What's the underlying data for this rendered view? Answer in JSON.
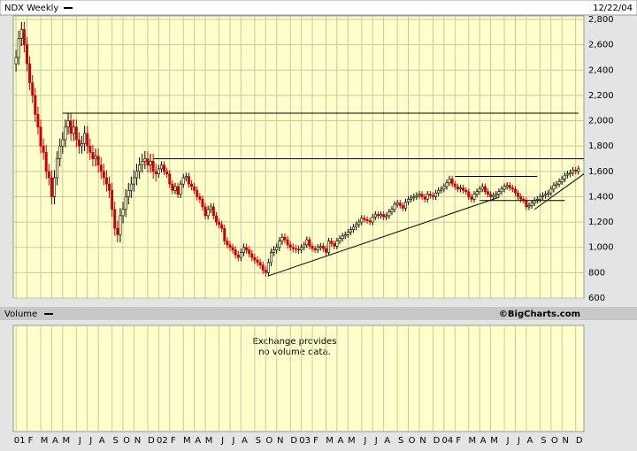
{
  "chart_data": {
    "type": "candlestick",
    "title": "NDX Weekly",
    "date": "12/22/04",
    "volume_label": "Volume",
    "credit": "©BigCharts.com",
    "volume_note": [
      "Exchange provides",
      "no volume data."
    ],
    "up_color": "#000000",
    "down_color": "#cc0000",
    "grid": true,
    "ylim": [
      600,
      2800
    ],
    "yticks": [
      600,
      800,
      {
        "value": 1000,
        "label": "1,000"
      },
      {
        "value": 1200,
        "label": "1,200"
      },
      {
        "value": 1400,
        "label": "1,400"
      },
      {
        "value": 1600,
        "label": "1,600"
      },
      {
        "value": 1800,
        "label": "1,800"
      },
      {
        "value": 2000,
        "label": "2,000"
      },
      {
        "value": 2200,
        "label": "2,200"
      },
      {
        "value": 2400,
        "label": "2,400"
      },
      {
        "value": 2600,
        "label": "2,600"
      },
      {
        "value": 2800,
        "label": "2,800"
      }
    ],
    "xlim": [
      -1,
      207
    ],
    "xticks": [
      {
        "value": 0,
        "label": "01"
      },
      {
        "value": 4,
        "label": "F"
      },
      {
        "value": 9,
        "label": "M"
      },
      {
        "value": 13,
        "label": "A"
      },
      {
        "value": 17,
        "label": "M"
      },
      {
        "value": 22,
        "label": "J"
      },
      {
        "value": 26,
        "label": "J"
      },
      {
        "value": 30,
        "label": "A"
      },
      {
        "value": 35,
        "label": "S"
      },
      {
        "value": 39,
        "label": "O"
      },
      {
        "value": 43,
        "label": "N"
      },
      {
        "value": 48,
        "label": "D"
      },
      {
        "value": 52,
        "label": "02"
      },
      {
        "value": 56,
        "label": "F"
      },
      {
        "value": 61,
        "label": "M"
      },
      {
        "value": 65,
        "label": "A"
      },
      {
        "value": 69,
        "label": "M"
      },
      {
        "value": 74,
        "label": "J"
      },
      {
        "value": 78,
        "label": "J"
      },
      {
        "value": 82,
        "label": "A"
      },
      {
        "value": 87,
        "label": "S"
      },
      {
        "value": 91,
        "label": "O"
      },
      {
        "value": 95,
        "label": "N"
      },
      {
        "value": 100,
        "label": "D"
      },
      {
        "value": 104,
        "label": "03"
      },
      {
        "value": 108,
        "label": "F"
      },
      {
        "value": 113,
        "label": "M"
      },
      {
        "value": 117,
        "label": "A"
      },
      {
        "value": 121,
        "label": "M"
      },
      {
        "value": 126,
        "label": "J"
      },
      {
        "value": 130,
        "label": "J"
      },
      {
        "value": 134,
        "label": "A"
      },
      {
        "value": 139,
        "label": "S"
      },
      {
        "value": 143,
        "label": "O"
      },
      {
        "value": 147,
        "label": "N"
      },
      {
        "value": 152,
        "label": "D"
      },
      {
        "value": 156,
        "label": "04"
      },
      {
        "value": 160,
        "label": "F"
      },
      {
        "value": 165,
        "label": "M"
      },
      {
        "value": 169,
        "label": "A"
      },
      {
        "value": 173,
        "label": "M"
      },
      {
        "value": 178,
        "label": "J"
      },
      {
        "value": 182,
        "label": "J"
      },
      {
        "value": 186,
        "label": "A"
      },
      {
        "value": 191,
        "label": "S"
      },
      {
        "value": 195,
        "label": "O"
      },
      {
        "value": 199,
        "label": "N"
      },
      {
        "value": 204,
        "label": "D"
      }
    ],
    "reference_lines": [
      {
        "y": 2060,
        "x": [
          17,
          205
        ]
      },
      {
        "y": 1700,
        "x": [
          50,
          207
        ]
      },
      {
        "y": 1560,
        "x": [
          160,
          190
        ]
      },
      {
        "y": 1370,
        "x": [
          169,
          200
        ]
      }
    ],
    "trend_lines": [
      {
        "x": [
          92,
          176
        ],
        "y": [
          775,
          1395
        ]
      },
      {
        "x": [
          189,
          207
        ],
        "y": [
          1300,
          1580
        ]
      }
    ],
    "ohlc": [
      [
        2450,
        2560,
        2390,
        2500
      ],
      [
        2500,
        2710,
        2440,
        2650
      ],
      [
        2650,
        2780,
        2590,
        2720
      ],
      [
        2720,
        2780,
        2540,
        2600
      ],
      [
        2600,
        2660,
        2390,
        2450
      ],
      [
        2450,
        2510,
        2240,
        2300
      ],
      [
        2300,
        2360,
        2140,
        2200
      ],
      [
        2200,
        2260,
        1990,
        2050
      ],
      [
        2050,
        2110,
        1890,
        1950
      ],
      [
        1950,
        2010,
        1740,
        1800
      ],
      [
        1800,
        1860,
        1690,
        1750
      ],
      [
        1750,
        1810,
        1540,
        1600
      ],
      [
        1600,
        1660,
        1490,
        1550
      ],
      [
        1550,
        1610,
        1340,
        1400
      ],
      [
        1400,
        1610,
        1340,
        1550
      ],
      [
        1550,
        1760,
        1490,
        1700
      ],
      [
        1700,
        1860,
        1640,
        1800
      ],
      [
        1800,
        1910,
        1740,
        1850
      ],
      [
        1850,
        2010,
        1790,
        1950
      ],
      [
        1950,
        2060,
        1890,
        2000
      ],
      [
        2000,
        2060,
        1840,
        1900
      ],
      [
        1900,
        2010,
        1840,
        1950
      ],
      [
        1950,
        2010,
        1790,
        1850
      ],
      [
        1850,
        1910,
        1740,
        1800
      ],
      [
        1800,
        1880,
        1740,
        1820
      ],
      [
        1820,
        1960,
        1760,
        1900
      ],
      [
        1900,
        1960,
        1740,
        1800
      ],
      [
        1800,
        1860,
        1690,
        1750
      ],
      [
        1750,
        1810,
        1640,
        1700
      ],
      [
        1700,
        1780,
        1640,
        1720
      ],
      [
        1720,
        1780,
        1590,
        1650
      ],
      [
        1650,
        1710,
        1540,
        1600
      ],
      [
        1600,
        1660,
        1490,
        1550
      ],
      [
        1550,
        1610,
        1440,
        1500
      ],
      [
        1500,
        1560,
        1390,
        1450
      ],
      [
        1450,
        1510,
        1240,
        1300
      ],
      [
        1300,
        1360,
        1090,
        1150
      ],
      [
        1150,
        1210,
        1040,
        1100
      ],
      [
        1100,
        1310,
        1040,
        1250
      ],
      [
        1250,
        1360,
        1190,
        1300
      ],
      [
        1300,
        1460,
        1240,
        1400
      ],
      [
        1400,
        1510,
        1340,
        1450
      ],
      [
        1450,
        1560,
        1390,
        1500
      ],
      [
        1500,
        1610,
        1440,
        1550
      ],
      [
        1550,
        1660,
        1490,
        1600
      ],
      [
        1600,
        1710,
        1540,
        1650
      ],
      [
        1650,
        1740,
        1590,
        1680
      ],
      [
        1680,
        1760,
        1620,
        1700
      ],
      [
        1700,
        1760,
        1590,
        1650
      ],
      [
        1650,
        1740,
        1590,
        1680
      ],
      [
        1680,
        1740,
        1540,
        1600
      ],
      [
        1600,
        1660,
        1520,
        1580
      ],
      [
        1580,
        1650,
        1550,
        1620
      ],
      [
        1620,
        1680,
        1590,
        1650
      ],
      [
        1650,
        1680,
        1570,
        1600
      ],
      [
        1600,
        1630,
        1550,
        1580
      ],
      [
        1580,
        1610,
        1470,
        1500
      ],
      [
        1500,
        1530,
        1420,
        1450
      ],
      [
        1450,
        1510,
        1420,
        1480
      ],
      [
        1480,
        1510,
        1390,
        1420
      ],
      [
        1420,
        1530,
        1390,
        1500
      ],
      [
        1500,
        1580,
        1470,
        1550
      ],
      [
        1550,
        1590,
        1520,
        1560
      ],
      [
        1560,
        1590,
        1470,
        1500
      ],
      [
        1500,
        1530,
        1450,
        1480
      ],
      [
        1480,
        1510,
        1420,
        1450
      ],
      [
        1450,
        1480,
        1370,
        1400
      ],
      [
        1400,
        1430,
        1350,
        1380
      ],
      [
        1380,
        1410,
        1290,
        1320
      ],
      [
        1320,
        1350,
        1220,
        1250
      ],
      [
        1250,
        1330,
        1220,
        1300
      ],
      [
        1300,
        1350,
        1270,
        1320
      ],
      [
        1320,
        1350,
        1220,
        1250
      ],
      [
        1250,
        1280,
        1170,
        1200
      ],
      [
        1200,
        1230,
        1150,
        1180
      ],
      [
        1180,
        1210,
        1120,
        1150
      ],
      [
        1150,
        1180,
        1020,
        1050
      ],
      [
        1050,
        1080,
        990,
        1020
      ],
      [
        1020,
        1050,
        970,
        1000
      ],
      [
        1000,
        1030,
        950,
        980
      ],
      [
        980,
        1010,
        910,
        940
      ],
      [
        940,
        970,
        890,
        920
      ],
      [
        920,
        990,
        890,
        960
      ],
      [
        960,
        1030,
        930,
        1000
      ],
      [
        1000,
        1030,
        950,
        980
      ],
      [
        980,
        1010,
        920,
        950
      ],
      [
        950,
        980,
        890,
        920
      ],
      [
        920,
        950,
        870,
        900
      ],
      [
        900,
        930,
        850,
        880
      ],
      [
        880,
        910,
        830,
        860
      ],
      [
        860,
        890,
        790,
        820
      ],
      [
        820,
        850,
        770,
        800
      ],
      [
        800,
        910,
        770,
        880
      ],
      [
        880,
        990,
        850,
        960
      ],
      [
        960,
        1010,
        930,
        980
      ],
      [
        980,
        1030,
        950,
        1000
      ],
      [
        1000,
        1080,
        970,
        1050
      ],
      [
        1050,
        1110,
        1020,
        1080
      ],
      [
        1080,
        1110,
        1030,
        1060
      ],
      [
        1060,
        1090,
        990,
        1020
      ],
      [
        1020,
        1050,
        970,
        1000
      ],
      [
        1000,
        1030,
        960,
        990
      ],
      [
        990,
        1020,
        955,
        985
      ],
      [
        985,
        1015,
        950,
        980
      ],
      [
        980,
        1025,
        955,
        1000
      ],
      [
        1000,
        1045,
        975,
        1020
      ],
      [
        1020,
        1085,
        995,
        1060
      ],
      [
        1060,
        1085,
        985,
        1010
      ],
      [
        1010,
        1035,
        965,
        990
      ],
      [
        990,
        1015,
        955,
        980
      ],
      [
        980,
        1025,
        955,
        1000
      ],
      [
        1000,
        1035,
        975,
        1010
      ],
      [
        1010,
        1035,
        965,
        990
      ],
      [
        990,
        1015,
        935,
        960
      ],
      [
        960,
        1075,
        935,
        1050
      ],
      [
        1050,
        1075,
        1005,
        1030
      ],
      [
        1030,
        1055,
        985,
        1010
      ],
      [
        1010,
        1075,
        985,
        1050
      ],
      [
        1050,
        1095,
        1025,
        1070
      ],
      [
        1070,
        1115,
        1045,
        1090
      ],
      [
        1090,
        1125,
        1065,
        1100
      ],
      [
        1100,
        1145,
        1075,
        1120
      ],
      [
        1120,
        1165,
        1095,
        1140
      ],
      [
        1140,
        1185,
        1115,
        1160
      ],
      [
        1160,
        1205,
        1135,
        1180
      ],
      [
        1180,
        1225,
        1155,
        1200
      ],
      [
        1200,
        1255,
        1175,
        1230
      ],
      [
        1230,
        1255,
        1195,
        1220
      ],
      [
        1220,
        1245,
        1185,
        1210
      ],
      [
        1210,
        1235,
        1175,
        1200
      ],
      [
        1200,
        1265,
        1175,
        1240
      ],
      [
        1240,
        1285,
        1215,
        1260
      ],
      [
        1260,
        1285,
        1225,
        1250
      ],
      [
        1250,
        1285,
        1225,
        1260
      ],
      [
        1260,
        1285,
        1215,
        1240
      ],
      [
        1240,
        1275,
        1215,
        1250
      ],
      [
        1250,
        1305,
        1225,
        1280
      ],
      [
        1280,
        1325,
        1255,
        1300
      ],
      [
        1300,
        1365,
        1275,
        1340
      ],
      [
        1340,
        1375,
        1315,
        1350
      ],
      [
        1350,
        1375,
        1305,
        1330
      ],
      [
        1330,
        1355,
        1285,
        1310
      ],
      [
        1310,
        1385,
        1285,
        1360
      ],
      [
        1360,
        1405,
        1335,
        1380
      ],
      [
        1380,
        1415,
        1355,
        1390
      ],
      [
        1390,
        1425,
        1365,
        1400
      ],
      [
        1400,
        1435,
        1375,
        1410
      ],
      [
        1410,
        1445,
        1385,
        1420
      ],
      [
        1420,
        1445,
        1375,
        1400
      ],
      [
        1400,
        1425,
        1355,
        1380
      ],
      [
        1380,
        1445,
        1355,
        1420
      ],
      [
        1420,
        1445,
        1385,
        1410
      ],
      [
        1410,
        1435,
        1375,
        1400
      ],
      [
        1400,
        1455,
        1375,
        1430
      ],
      [
        1430,
        1475,
        1405,
        1450
      ],
      [
        1450,
        1485,
        1425,
        1460
      ],
      [
        1460,
        1505,
        1435,
        1480
      ],
      [
        1480,
        1535,
        1455,
        1510
      ],
      [
        1510,
        1565,
        1485,
        1540
      ],
      [
        1540,
        1565,
        1475,
        1500
      ],
      [
        1500,
        1525,
        1455,
        1480
      ],
      [
        1480,
        1505,
        1435,
        1460
      ],
      [
        1460,
        1495,
        1435,
        1470
      ],
      [
        1470,
        1495,
        1425,
        1450
      ],
      [
        1450,
        1475,
        1415,
        1440
      ],
      [
        1440,
        1465,
        1375,
        1400
      ],
      [
        1400,
        1425,
        1355,
        1380
      ],
      [
        1380,
        1445,
        1355,
        1420
      ],
      [
        1420,
        1465,
        1395,
        1440
      ],
      [
        1440,
        1485,
        1415,
        1460
      ],
      [
        1460,
        1505,
        1435,
        1480
      ],
      [
        1480,
        1505,
        1415,
        1440
      ],
      [
        1440,
        1465,
        1395,
        1420
      ],
      [
        1420,
        1445,
        1375,
        1400
      ],
      [
        1400,
        1435,
        1375,
        1410
      ],
      [
        1410,
        1445,
        1385,
        1420
      ],
      [
        1420,
        1465,
        1395,
        1440
      ],
      [
        1440,
        1485,
        1415,
        1460
      ],
      [
        1460,
        1505,
        1435,
        1480
      ],
      [
        1480,
        1515,
        1455,
        1490
      ],
      [
        1490,
        1515,
        1445,
        1470
      ],
      [
        1470,
        1495,
        1435,
        1460
      ],
      [
        1460,
        1485,
        1405,
        1430
      ],
      [
        1430,
        1455,
        1375,
        1400
      ],
      [
        1400,
        1425,
        1355,
        1380
      ],
      [
        1380,
        1405,
        1345,
        1370
      ],
      [
        1370,
        1395,
        1295,
        1320
      ],
      [
        1320,
        1355,
        1295,
        1330
      ],
      [
        1330,
        1375,
        1305,
        1350
      ],
      [
        1350,
        1395,
        1325,
        1370
      ],
      [
        1370,
        1405,
        1345,
        1380
      ],
      [
        1380,
        1425,
        1355,
        1400
      ],
      [
        1400,
        1435,
        1375,
        1410
      ],
      [
        1410,
        1445,
        1385,
        1420
      ],
      [
        1420,
        1455,
        1395,
        1430
      ],
      [
        1430,
        1485,
        1405,
        1460
      ],
      [
        1460,
        1515,
        1435,
        1490
      ],
      [
        1490,
        1525,
        1465,
        1500
      ],
      [
        1500,
        1545,
        1475,
        1520
      ],
      [
        1520,
        1565,
        1495,
        1540
      ],
      [
        1540,
        1595,
        1515,
        1570
      ],
      [
        1570,
        1605,
        1545,
        1580
      ],
      [
        1580,
        1615,
        1555,
        1590
      ],
      [
        1590,
        1635,
        1565,
        1610
      ],
      [
        1610,
        1635,
        1575,
        1600
      ],
      [
        1600,
        1645,
        1575,
        1620
      ]
    ]
  }
}
